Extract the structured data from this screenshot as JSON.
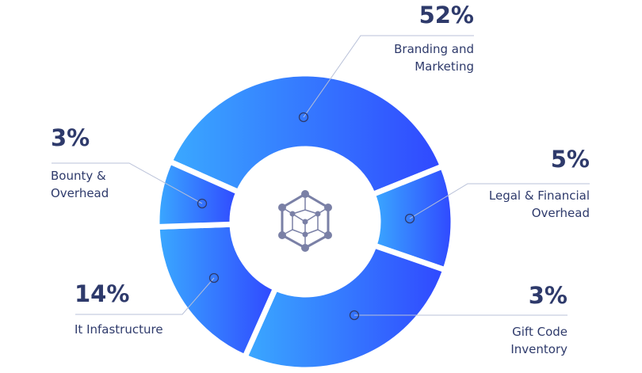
{
  "chart_data": {
    "type": "pie",
    "variant": "donut",
    "title": "",
    "categories": [
      "Branding and Marketing",
      "Legal & Financial Overhead",
      "Gift Code Inventory",
      "It Infastructure",
      "Bounty & Overhead"
    ],
    "values": [
      52,
      5,
      3,
      14,
      3
    ],
    "value_labels": [
      "52%",
      "5%",
      "3%",
      "14%",
      "3%"
    ],
    "label_lines": [
      [
        "Branding and",
        "Marketing"
      ],
      [
        "Legal & Financial",
        "Overhead"
      ],
      [
        "Gift Code",
        "Inventory"
      ],
      [
        "It Infastructure"
      ],
      [
        "Bounty &",
        "Overhead"
      ]
    ],
    "legend": "none",
    "center_icon": "hexagon-network-icon",
    "colors": {
      "gradient_start": "#3aa9ff",
      "gradient_end": "#3048ff",
      "text": "#2e3a6b",
      "leader_line": "#b8c0d8",
      "icon": "#7a80a6"
    }
  }
}
